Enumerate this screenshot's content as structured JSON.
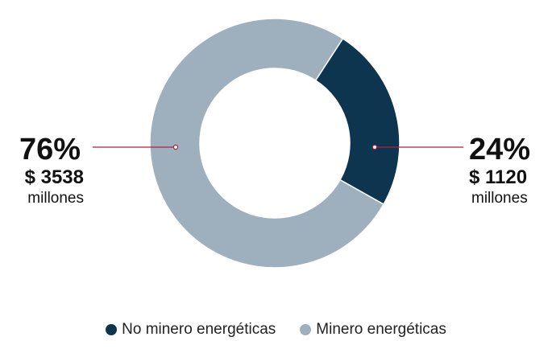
{
  "chart_data": {
    "type": "pie",
    "variant": "donut",
    "title": "",
    "slices": [
      {
        "name": "No minero energéticas",
        "percent": 24,
        "percent_label": "24%",
        "amount": 1120,
        "amount_label": "$ 1120",
        "unit": "millones",
        "color": "#0d3550"
      },
      {
        "name": "Minero energéticas",
        "percent": 76,
        "percent_label": "76%",
        "amount": 3538,
        "amount_label": "$ 3538",
        "unit": "millones",
        "color": "#9eb0bd"
      }
    ],
    "legend_placement": "bottom",
    "leader_line_color": "#b3203c"
  }
}
